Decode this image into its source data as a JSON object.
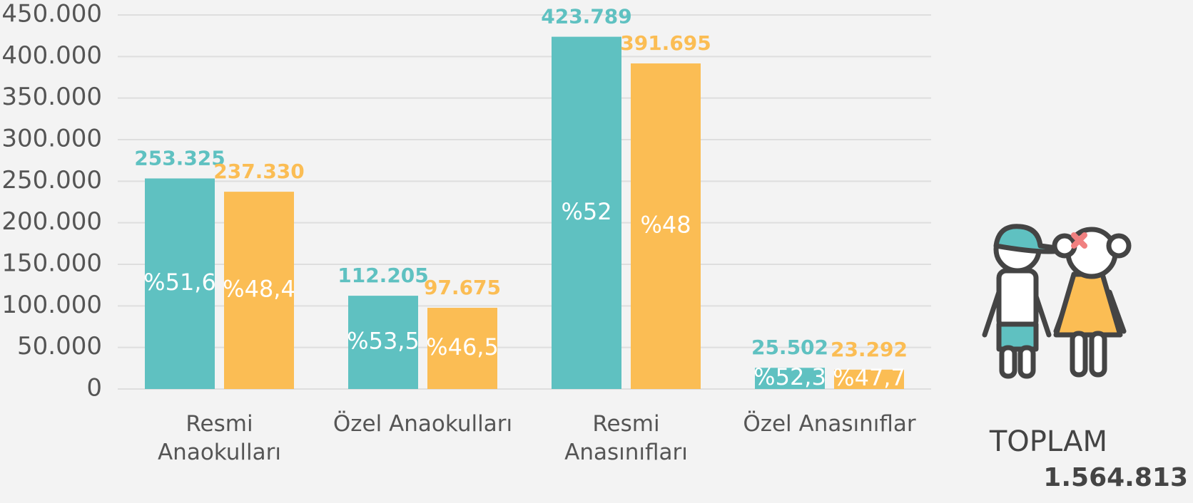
{
  "chart_data": {
    "type": "bar",
    "categories": [
      "Resmi Anaokulları",
      "Özel Anaokulları",
      "Resmi Anasınıfları",
      "Özel Anasınıflar"
    ],
    "series": [
      {
        "color": "#5fc1c1",
        "values": [
          253325,
          112205,
          423789,
          25502
        ],
        "value_labels": [
          "253.325",
          "112.205",
          "423.789",
          "25.502"
        ],
        "share_labels": [
          "%51,6",
          "%53,5",
          "%52",
          "%52,3"
        ]
      },
      {
        "color": "#fbbd54",
        "values": [
          237330,
          97675,
          391695,
          23292
        ],
        "value_labels": [
          "237.330",
          "97.675",
          "391.695",
          "23.292"
        ],
        "share_labels": [
          "%48,4",
          "%46,5",
          "%48",
          "%47,7"
        ]
      }
    ],
    "ylim": [
      0,
      450000
    ],
    "yticks": [
      0,
      {
        "value": 50000,
        "label": "50.000"
      },
      {
        "value": 100000,
        "label": "100.000"
      },
      {
        "value": 150000,
        "label": "150.000"
      },
      {
        "value": 200000,
        "label": "200.000"
      },
      {
        "value": 250000,
        "label": "250.000"
      },
      {
        "value": 300000,
        "label": "300.000"
      },
      {
        "value": 350000,
        "label": "350.000"
      },
      {
        "value": 400000,
        "label": "400.000"
      },
      {
        "value": 450000,
        "label": "450.000"
      }
    ],
    "grid": true,
    "total_title": "TOPLAM",
    "total": {
      "value": 1564813,
      "label": "1.564.813"
    }
  }
}
